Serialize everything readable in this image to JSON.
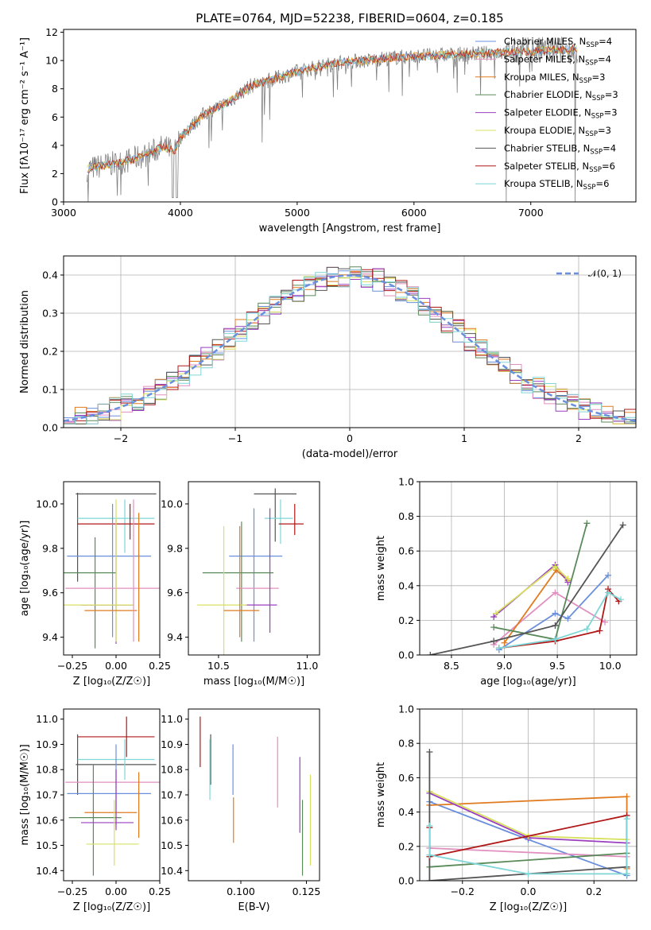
{
  "colors": {
    "chabrier_miles": "#6a8fdc",
    "salpeter_miles": "#e08fbf",
    "kroupa_miles": "#e07b20",
    "chabrier_elodie": "#5a8a5a",
    "salpeter_elodie": "#9a3fbf",
    "kroupa_elodie": "#d8e060",
    "chabrier_stelib": "#555555",
    "salpeter_stelib": "#b01818",
    "kroupa_stelib": "#7fd6d6",
    "spectrum_data": "#808080"
  },
  "legend": [
    {
      "text": "Chabrier MILES, N",
      "sub": "SSP",
      "tail": "=4",
      "color_key": "chabrier_miles"
    },
    {
      "text": "Salpeter MILES, N",
      "sub": "SSP",
      "tail": "=4",
      "color_key": "salpeter_miles"
    },
    {
      "text": "Kroupa MILES, N",
      "sub": "SSP",
      "tail": "=3",
      "color_key": "kroupa_miles"
    },
    {
      "text": "Chabrier ELODIE, N",
      "sub": "SSP",
      "tail": "=3",
      "color_key": "chabrier_elodie"
    },
    {
      "text": "Salpeter ELODIE, N",
      "sub": "SSP",
      "tail": "=3",
      "color_key": "salpeter_elodie"
    },
    {
      "text": "Kroupa ELODIE, N",
      "sub": "SSP",
      "tail": "=3",
      "color_key": "kroupa_elodie"
    },
    {
      "text": "Chabrier STELIB, N",
      "sub": "SSP",
      "tail": "=4",
      "color_key": "chabrier_stelib"
    },
    {
      "text": "Salpeter STELIB, N",
      "sub": "SSP",
      "tail": "=6",
      "color_key": "salpeter_stelib"
    },
    {
      "text": "Kroupa STELIB, N",
      "sub": "SSP",
      "tail": "=6",
      "color_key": "kroupa_stelib"
    }
  ],
  "chart_data": [
    {
      "id": "spectrum",
      "type": "line",
      "title": "PLATE=0764, MJD=52238, FIBERID=0604, z=0.185",
      "xlabel": "wavelength [Angstrom, rest frame]",
      "ylabel": "Flux [fλ10⁻¹⁷ erg cm⁻² s⁻¹ A⁻¹]",
      "xlim": [
        3000,
        7900
      ],
      "ylim": [
        0,
        12.2
      ],
      "xticks": [
        3000,
        4000,
        5000,
        6000,
        7000
      ],
      "yticks": [
        0,
        2,
        4,
        6,
        8,
        10,
        12
      ],
      "grid": false,
      "legend_position": "upper-right",
      "continuum": [
        [
          3200,
          2.3
        ],
        [
          3350,
          2.6
        ],
        [
          3500,
          2.8
        ],
        [
          3700,
          3.3
        ],
        [
          3850,
          3.9
        ],
        [
          3950,
          3.6
        ],
        [
          4000,
          4.6
        ],
        [
          4200,
          6.2
        ],
        [
          4400,
          7.0
        ],
        [
          4600,
          8.2
        ],
        [
          4800,
          8.7
        ],
        [
          5000,
          9.2
        ],
        [
          5200,
          9.6
        ],
        [
          5400,
          9.9
        ],
        [
          5600,
          10.0
        ],
        [
          5800,
          10.2
        ],
        [
          6000,
          10.3
        ],
        [
          6300,
          10.4
        ],
        [
          6600,
          10.5
        ],
        [
          6800,
          10.6
        ],
        [
          7100,
          10.7
        ],
        [
          7400,
          10.8
        ],
        [
          7900,
          10.8
        ]
      ]
    },
    {
      "id": "residuals",
      "type": "histogram",
      "xlabel": "(data-model)/error",
      "ylabel": "Normed distribution",
      "xlim": [
        -2.5,
        2.5
      ],
      "ylim": [
        0,
        0.45
      ],
      "xticks": [
        -2,
        -1,
        0,
        1,
        2
      ],
      "yticks": [
        0.0,
        0.1,
        0.2,
        0.3,
        0.4
      ],
      "grid": true,
      "bin_width": 0.1,
      "reference_curve": {
        "name": "𝒩(0, 1)",
        "mean": 0,
        "sigma": 1,
        "color_key": "chabrier_miles"
      },
      "legend_position": "upper-right"
    },
    {
      "id": "z_vs_age",
      "type": "errorbar",
      "xlabel": "Z [log₁₀(Z/Z☉)]",
      "ylabel": "age  [log₁₀(age/yr)]",
      "xlim": [
        -0.3,
        0.25
      ],
      "ylim": [
        9.32,
        10.1
      ],
      "xticks": [
        -0.25,
        0.0,
        0.25
      ],
      "yticks": [
        9.4,
        9.6,
        9.8,
        10.0
      ],
      "grid": false,
      "points": [
        {
          "model": "chabrier_stelib",
          "x": 0.0,
          "xerr": 0.23,
          "y": 10.045,
          "yerr": 0.0
        },
        {
          "model": "chabrier_stelib",
          "x": -0.22,
          "xerr": 0.0,
          "y": 9.85,
          "yerr": 0.2
        },
        {
          "model": "kroupa_stelib",
          "x": 0.0,
          "xerr": 0.22,
          "y": 9.935,
          "yerr": 0.0
        },
        {
          "model": "kroupa_stelib",
          "x": 0.05,
          "xerr": 0.0,
          "y": 9.9,
          "yerr": 0.12
        },
        {
          "model": "salpeter_stelib",
          "x": 0.0,
          "xerr": 0.22,
          "y": 9.91,
          "yerr": 0.0
        },
        {
          "model": "salpeter_stelib",
          "x": 0.08,
          "xerr": 0.0,
          "y": 9.92,
          "yerr": 0.08
        },
        {
          "model": "chabrier_miles",
          "x": -0.04,
          "xerr": 0.24,
          "y": 9.765,
          "yerr": 0.0
        },
        {
          "model": "chabrier_miles",
          "x": -0.02,
          "xerr": 0.0,
          "y": 9.7,
          "yerr": 0.3
        },
        {
          "model": "chabrier_elodie",
          "x": -0.15,
          "xerr": 0.15,
          "y": 9.69,
          "yerr": 0.0
        },
        {
          "model": "chabrier_elodie",
          "x": -0.12,
          "xerr": 0.0,
          "y": 9.6,
          "yerr": 0.25
        },
        {
          "model": "salpeter_miles",
          "x": -0.02,
          "xerr": 0.27,
          "y": 9.62,
          "yerr": 0.0
        },
        {
          "model": "salpeter_elodie",
          "x": -0.05,
          "xerr": 0.15,
          "y": 9.545,
          "yerr": 0.0
        },
        {
          "model": "salpeter_elodie",
          "x": 0.0,
          "xerr": 0.0,
          "y": 9.65,
          "yerr": 0.28
        },
        {
          "model": "kroupa_elodie",
          "x": -0.1,
          "xerr": 0.2,
          "y": 9.545,
          "yerr": 0.0
        },
        {
          "model": "kroupa_elodie",
          "x": 0.0,
          "xerr": 0.0,
          "y": 9.7,
          "yerr": 0.32
        },
        {
          "model": "kroupa_miles",
          "x": -0.03,
          "xerr": 0.15,
          "y": 9.52,
          "yerr": 0.0
        },
        {
          "model": "kroupa_miles",
          "x": 0.13,
          "xerr": 0.0,
          "y": 9.67,
          "yerr": 0.29
        },
        {
          "model": "salpeter_miles",
          "x": 0.1,
          "xerr": 0.0,
          "y": 9.7,
          "yerr": 0.32
        }
      ]
    },
    {
      "id": "mass_vs_age",
      "type": "errorbar",
      "xlabel": "mass [log₁₀(M/M☉)]",
      "ylabel": "",
      "xlim": [
        10.33,
        11.07
      ],
      "ylim": [
        9.32,
        10.1
      ],
      "xticks": [
        10.5,
        11.0
      ],
      "yticks": [
        9.4,
        9.6,
        9.8,
        10.0
      ],
      "grid": false,
      "points": [
        {
          "model": "chabrier_stelib",
          "x": 10.82,
          "xerr": 0.0,
          "y": 9.95,
          "yerr": 0.12
        },
        {
          "model": "chabrier_stelib",
          "x": 10.82,
          "xerr": 0.12,
          "y": 10.045,
          "yerr": 0.0
        },
        {
          "model": "kroupa_stelib",
          "x": 10.84,
          "xerr": 0.08,
          "y": 9.935,
          "yerr": 0.0
        },
        {
          "model": "kroupa_stelib",
          "x": 10.85,
          "xerr": 0.0,
          "y": 9.92,
          "yerr": 0.1
        },
        {
          "model": "salpeter_stelib",
          "x": 10.91,
          "xerr": 0.07,
          "y": 9.91,
          "yerr": 0.0
        },
        {
          "model": "salpeter_stelib",
          "x": 10.93,
          "xerr": 0.0,
          "y": 9.93,
          "yerr": 0.07
        },
        {
          "model": "chabrier_miles",
          "x": 10.71,
          "xerr": 0.15,
          "y": 9.765,
          "yerr": 0.0
        },
        {
          "model": "chabrier_miles",
          "x": 10.7,
          "xerr": 0.0,
          "y": 9.68,
          "yerr": 0.3
        },
        {
          "model": "chabrier_elodie",
          "x": 10.61,
          "xerr": 0.2,
          "y": 9.69,
          "yerr": 0.0
        },
        {
          "model": "chabrier_elodie",
          "x": 10.63,
          "xerr": 0.0,
          "y": 9.65,
          "yerr": 0.27
        },
        {
          "model": "salpeter_miles",
          "x": 10.72,
          "xerr": 0.12,
          "y": 9.62,
          "yerr": 0.0
        },
        {
          "model": "salpeter_elodie",
          "x": 10.74,
          "xerr": 0.09,
          "y": 9.545,
          "yerr": 0.0
        },
        {
          "model": "salpeter_elodie",
          "x": 10.79,
          "xerr": 0.0,
          "y": 9.7,
          "yerr": 0.28
        },
        {
          "model": "kroupa_elodie",
          "x": 10.52,
          "xerr": 0.14,
          "y": 9.545,
          "yerr": 0.0
        },
        {
          "model": "kroupa_elodie",
          "x": 10.53,
          "xerr": 0.0,
          "y": 9.6,
          "yerr": 0.3
        },
        {
          "model": "kroupa_miles",
          "x": 10.63,
          "xerr": 0.1,
          "y": 9.52,
          "yerr": 0.0
        },
        {
          "model": "kroupa_miles",
          "x": 10.62,
          "xerr": 0.0,
          "y": 9.65,
          "yerr": 0.25
        }
      ]
    },
    {
      "id": "age_vs_weight",
      "type": "line",
      "xlabel": "age  [log₁₀(age/yr)]",
      "ylabel": "mass weight",
      "xlim": [
        8.2,
        10.25
      ],
      "ylim": [
        0,
        1
      ],
      "xticks": [
        8.5,
        9.0,
        9.5,
        10.0
      ],
      "yticks": [
        0.0,
        0.2,
        0.4,
        0.6,
        0.8,
        1.0
      ],
      "grid": true,
      "series": [
        {
          "model": "chabrier_miles",
          "x": [
            8.95,
            9.48,
            9.6,
            9.98
          ],
          "y": [
            0.03,
            0.24,
            0.21,
            0.46
          ]
        },
        {
          "model": "salpeter_miles",
          "x": [
            8.9,
            9.48,
            9.95
          ],
          "y": [
            0.06,
            0.36,
            0.19
          ]
        },
        {
          "model": "kroupa_miles",
          "x": [
            9.0,
            9.49,
            9.6
          ],
          "y": [
            0.07,
            0.49,
            0.43
          ]
        },
        {
          "model": "chabrier_elodie",
          "x": [
            8.9,
            9.48,
            9.78
          ],
          "y": [
            0.16,
            0.09,
            0.76
          ]
        },
        {
          "model": "salpeter_elodie",
          "x": [
            8.9,
            9.48,
            9.6
          ],
          "y": [
            0.22,
            0.52,
            0.42
          ]
        },
        {
          "model": "kroupa_elodie",
          "x": [
            8.92,
            9.48,
            9.6
          ],
          "y": [
            0.24,
            0.51,
            0.44
          ]
        },
        {
          "model": "chabrier_stelib",
          "x": [
            8.3,
            8.9,
            9.48,
            10.12
          ],
          "y": [
            0.0,
            0.08,
            0.17,
            0.75
          ]
        },
        {
          "model": "salpeter_stelib",
          "x": [
            8.95,
            9.48,
            9.9,
            9.98,
            10.08
          ],
          "y": [
            0.04,
            0.08,
            0.14,
            0.38,
            0.31
          ]
        },
        {
          "model": "kroupa_stelib",
          "x": [
            8.95,
            9.48,
            9.78,
            9.98,
            10.1
          ],
          "y": [
            0.04,
            0.09,
            0.15,
            0.36,
            0.32
          ]
        }
      ]
    },
    {
      "id": "z_vs_mass",
      "type": "errorbar",
      "xlabel": "Z [log₁₀(Z/Z☉)]",
      "ylabel": "mass [log₁₀(M/M☉)]",
      "xlim": [
        -0.3,
        0.25
      ],
      "ylim": [
        10.36,
        11.04
      ],
      "xticks": [
        -0.25,
        0.0,
        0.25
      ],
      "yticks": [
        10.4,
        10.5,
        10.6,
        10.7,
        10.8,
        10.9,
        11.0
      ],
      "grid": false,
      "points": [
        {
          "model": "salpeter_stelib",
          "x": 0.0,
          "xerr": 0.22,
          "y": 10.93,
          "yerr": 0.0
        },
        {
          "model": "salpeter_stelib",
          "x": 0.06,
          "xerr": 0.0,
          "y": 10.93,
          "yerr": 0.08
        },
        {
          "model": "chabrier_stelib",
          "x": -0.22,
          "xerr": 0.0,
          "y": 10.82,
          "yerr": 0.12
        },
        {
          "model": "chabrier_stelib",
          "x": 0.0,
          "xerr": 0.23,
          "y": 10.82,
          "yerr": 0.0
        },
        {
          "model": "kroupa_stelib",
          "x": 0.0,
          "xerr": 0.22,
          "y": 10.84,
          "yerr": 0.0
        },
        {
          "model": "kroupa_stelib",
          "x": 0.05,
          "xerr": 0.0,
          "y": 10.84,
          "yerr": 0.08
        },
        {
          "model": "salpeter_miles",
          "x": -0.02,
          "xerr": 0.27,
          "y": 10.75,
          "yerr": 0.0
        },
        {
          "model": "chabrier_miles",
          "x": -0.04,
          "xerr": 0.24,
          "y": 10.705,
          "yerr": 0.0
        },
        {
          "model": "chabrier_miles",
          "x": 0.0,
          "xerr": 0.0,
          "y": 10.74,
          "yerr": 0.16
        },
        {
          "model": "kroupa_miles",
          "x": -0.03,
          "xerr": 0.15,
          "y": 10.63,
          "yerr": 0.0
        },
        {
          "model": "kroupa_miles",
          "x": 0.13,
          "xerr": 0.0,
          "y": 10.66,
          "yerr": 0.13
        },
        {
          "model": "chabrier_elodie",
          "x": -0.12,
          "xerr": 0.15,
          "y": 10.61,
          "yerr": 0.0
        },
        {
          "model": "chabrier_elodie",
          "x": -0.13,
          "xerr": 0.0,
          "y": 10.6,
          "yerr": 0.22
        },
        {
          "model": "salpeter_elodie",
          "x": -0.05,
          "xerr": 0.15,
          "y": 10.59,
          "yerr": 0.0
        },
        {
          "model": "salpeter_elodie",
          "x": 0.0,
          "xerr": 0.0,
          "y": 10.68,
          "yerr": 0.12
        },
        {
          "model": "kroupa_elodie",
          "x": -0.02,
          "xerr": 0.15,
          "y": 10.505,
          "yerr": 0.0
        },
        {
          "model": "kroupa_elodie",
          "x": -0.01,
          "xerr": 0.0,
          "y": 10.55,
          "yerr": 0.13
        }
      ]
    },
    {
      "id": "ebv_vs_mass",
      "type": "errorbar",
      "xlabel": "E(B-V)",
      "ylabel": "",
      "xlim": [
        0.08,
        0.13
      ],
      "ylim": [
        10.36,
        11.04
      ],
      "xticks": [
        0.1,
        0.125
      ],
      "yticks": [
        10.4,
        10.5,
        10.6,
        10.7,
        10.8,
        10.9,
        11.0
      ],
      "grid": false,
      "points": [
        {
          "model": "salpeter_stelib",
          "x": 0.0845,
          "xerr": 0.0,
          "y": 10.91,
          "yerr": 0.1
        },
        {
          "model": "chabrier_stelib",
          "x": 0.0885,
          "xerr": 0.0,
          "y": 10.84,
          "yerr": 0.1
        },
        {
          "model": "kroupa_stelib",
          "x": 0.0882,
          "xerr": 0.0,
          "y": 10.8,
          "yerr": 0.12
        },
        {
          "model": "chabrier_miles",
          "x": 0.097,
          "xerr": 0.0,
          "y": 10.8,
          "yerr": 0.1
        },
        {
          "model": "kroupa_miles",
          "x": 0.0972,
          "xerr": 0.0,
          "y": 10.6,
          "yerr": 0.09
        },
        {
          "model": "salpeter_miles",
          "x": 0.114,
          "xerr": 0.0,
          "y": 10.79,
          "yerr": 0.14
        },
        {
          "model": "salpeter_elodie",
          "x": 0.1225,
          "xerr": 0.0,
          "y": 10.7,
          "yerr": 0.15
        },
        {
          "model": "chabrier_elodie",
          "x": 0.1235,
          "xerr": 0.0,
          "y": 10.53,
          "yerr": 0.15
        },
        {
          "model": "kroupa_elodie",
          "x": 0.1265,
          "xerr": 0.0,
          "y": 10.6,
          "yerr": 0.18
        }
      ]
    },
    {
      "id": "z_vs_weight",
      "type": "line",
      "xlabel": "Z [log₁₀(Z/Z☉)]",
      "ylabel": "mass weight",
      "xlim": [
        -0.33,
        0.33
      ],
      "ylim": [
        0,
        1
      ],
      "xticks": [
        -0.2,
        0.0,
        0.2
      ],
      "yticks": [
        0.0,
        0.2,
        0.4,
        0.6,
        0.8,
        1.0
      ],
      "grid": true,
      "series": [
        {
          "model": "chabrier_miles",
          "x": [
            -0.3,
            0.0,
            0.3
          ],
          "y": [
            0.46,
            0.24,
            0.03
          ]
        },
        {
          "model": "salpeter_miles",
          "x": [
            -0.3,
            0.3
          ],
          "y": [
            0.19,
            0.14
          ]
        },
        {
          "model": "kroupa_miles",
          "x": [
            -0.3,
            0.3,
            0.3
          ],
          "y": [
            0.44,
            0.49,
            0.07
          ]
        },
        {
          "model": "chabrier_elodie",
          "x": [
            -0.3,
            0.3
          ],
          "y": [
            0.08,
            0.16
          ]
        },
        {
          "model": "salpeter_elodie",
          "x": [
            -0.3,
            0.0,
            0.3
          ],
          "y": [
            0.51,
            0.25,
            0.22
          ]
        },
        {
          "model": "kroupa_elodie",
          "x": [
            -0.3,
            0.0,
            0.3
          ],
          "y": [
            0.52,
            0.26,
            0.24
          ]
        },
        {
          "model": "chabrier_stelib",
          "x": [
            -0.3,
            -0.3,
            0.3
          ],
          "y": [
            0.75,
            0.0,
            0.08
          ]
        },
        {
          "model": "salpeter_stelib",
          "x": [
            -0.3,
            -0.3,
            0.3,
            0.3
          ],
          "y": [
            0.31,
            0.14,
            0.38,
            0.04
          ]
        },
        {
          "model": "kroupa_stelib",
          "x": [
            -0.3,
            -0.3,
            0.0,
            0.3,
            0.3
          ],
          "y": [
            0.32,
            0.15,
            0.04,
            0.04,
            0.36
          ]
        }
      ]
    }
  ]
}
